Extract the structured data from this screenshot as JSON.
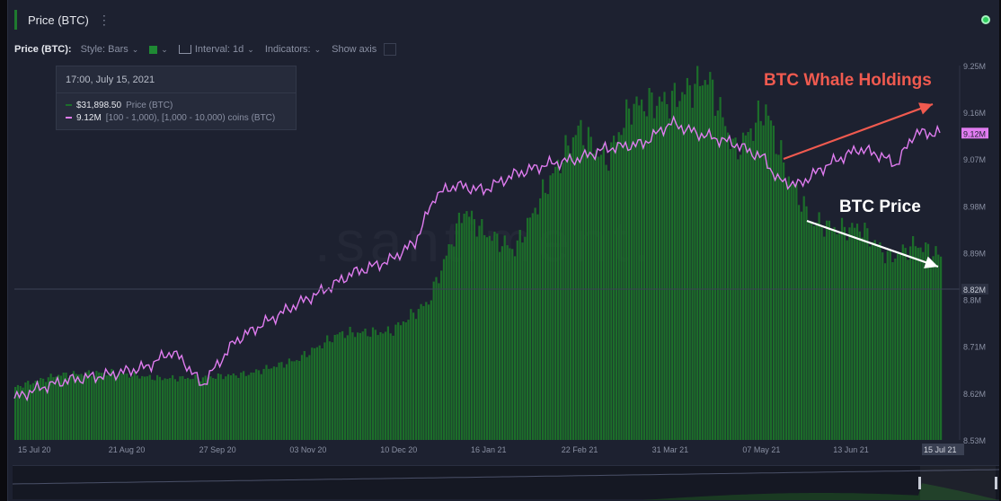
{
  "header": {
    "title": "Price (BTC)",
    "menu_icon": "more-vertical-icon",
    "status_color": "#2fd05e"
  },
  "toolbar": {
    "metric_label": "Price (BTC):",
    "style_label": "Style: Bars",
    "interval_label": "Interval: 1d",
    "indicators_label": "Indicators:",
    "show_axis_label": "Show axis",
    "color_swatch": "#1f8a34"
  },
  "tooltip": {
    "date": "17:00, July 15, 2021",
    "price_value": "$31,898.50",
    "price_label": "Price (BTC)",
    "holdings_value": "9.12M",
    "holdings_label": "[100 - 1,000), [1,000 - 10,000) coins (BTC)"
  },
  "annotations": {
    "whale": "BTC Whale Holdings",
    "price": "BTC Price",
    "whale_color": "#f05a4f",
    "price_color": "#ffffff"
  },
  "watermark": ".santiment.",
  "chart_data": {
    "type": "bar+line",
    "x_tick_labels": [
      "15 Jul 20",
      "21 Aug 20",
      "27 Sep 20",
      "03 Nov 20",
      "10 Dec 20",
      "16 Jan 21",
      "22 Feb 21",
      "31 Mar 21",
      "07 May 21",
      "13 Jun 21",
      "15 Jul 21"
    ],
    "right_axis_ticks": [
      "9.25M",
      "9.16M",
      "9.07M",
      "8.98M",
      "8.89M",
      "8.8M",
      "8.71M",
      "8.62M",
      "8.53M"
    ],
    "current_value_label": "9.12M",
    "crosshair_label": "8.82M",
    "colors": {
      "price_bars": "#1c6e2a",
      "holdings_line": "#e07cf0"
    },
    "series": [
      {
        "name": "Price (BTC)",
        "style": "bars",
        "dates": [
          "2020-07-15",
          "2020-08-01",
          "2020-08-21",
          "2020-09-10",
          "2020-09-27",
          "2020-10-15",
          "2020-11-03",
          "2020-11-20",
          "2020-12-10",
          "2020-12-25",
          "2021-01-08",
          "2021-01-16",
          "2021-01-28",
          "2021-02-10",
          "2021-02-22",
          "2021-03-05",
          "2021-03-15",
          "2021-03-31",
          "2021-04-14",
          "2021-04-25",
          "2021-05-07",
          "2021-05-15",
          "2021-05-25",
          "2021-06-05",
          "2021-06-13",
          "2021-06-25",
          "2021-07-05",
          "2021-07-15"
        ],
        "values": [
          9200,
          11300,
          11700,
          10700,
          10800,
          11500,
          13900,
          18500,
          18800,
          24000,
          40000,
          36000,
          33000,
          44500,
          54000,
          48500,
          58000,
          59000,
          63000,
          50000,
          57500,
          46500,
          38000,
          36500,
          37000,
          31500,
          34000,
          31898.5
        ]
      },
      {
        "name": "[100 - 1,000), [1,000 - 10,000) coins (BTC)",
        "style": "line",
        "dates": [
          "2020-07-15",
          "2020-07-25",
          "2020-08-05",
          "2020-08-21",
          "2020-09-05",
          "2020-09-15",
          "2020-09-20",
          "2020-09-27",
          "2020-10-10",
          "2020-10-20",
          "2020-11-03",
          "2020-11-15",
          "2020-11-25",
          "2020-12-10",
          "2020-12-20",
          "2020-12-28",
          "2021-01-05",
          "2021-01-16",
          "2021-01-28",
          "2021-02-10",
          "2021-02-22",
          "2021-03-05",
          "2021-03-20",
          "2021-03-31",
          "2021-04-10",
          "2021-04-25",
          "2021-05-07",
          "2021-05-12",
          "2021-05-20",
          "2021-06-01",
          "2021-06-13",
          "2021-06-20",
          "2021-06-28",
          "2021-07-05",
          "2021-07-15"
        ],
        "values": [
          8.61,
          8.63,
          8.645,
          8.655,
          8.67,
          8.7,
          8.68,
          8.635,
          8.72,
          8.75,
          8.79,
          8.82,
          8.85,
          8.875,
          8.91,
          9.0,
          9.02,
          9.01,
          9.04,
          9.06,
          9.07,
          9.09,
          9.1,
          9.14,
          9.12,
          9.1,
          9.07,
          9.03,
          9.02,
          9.06,
          9.09,
          9.08,
          9.06,
          9.12,
          9.12
        ]
      }
    ]
  }
}
